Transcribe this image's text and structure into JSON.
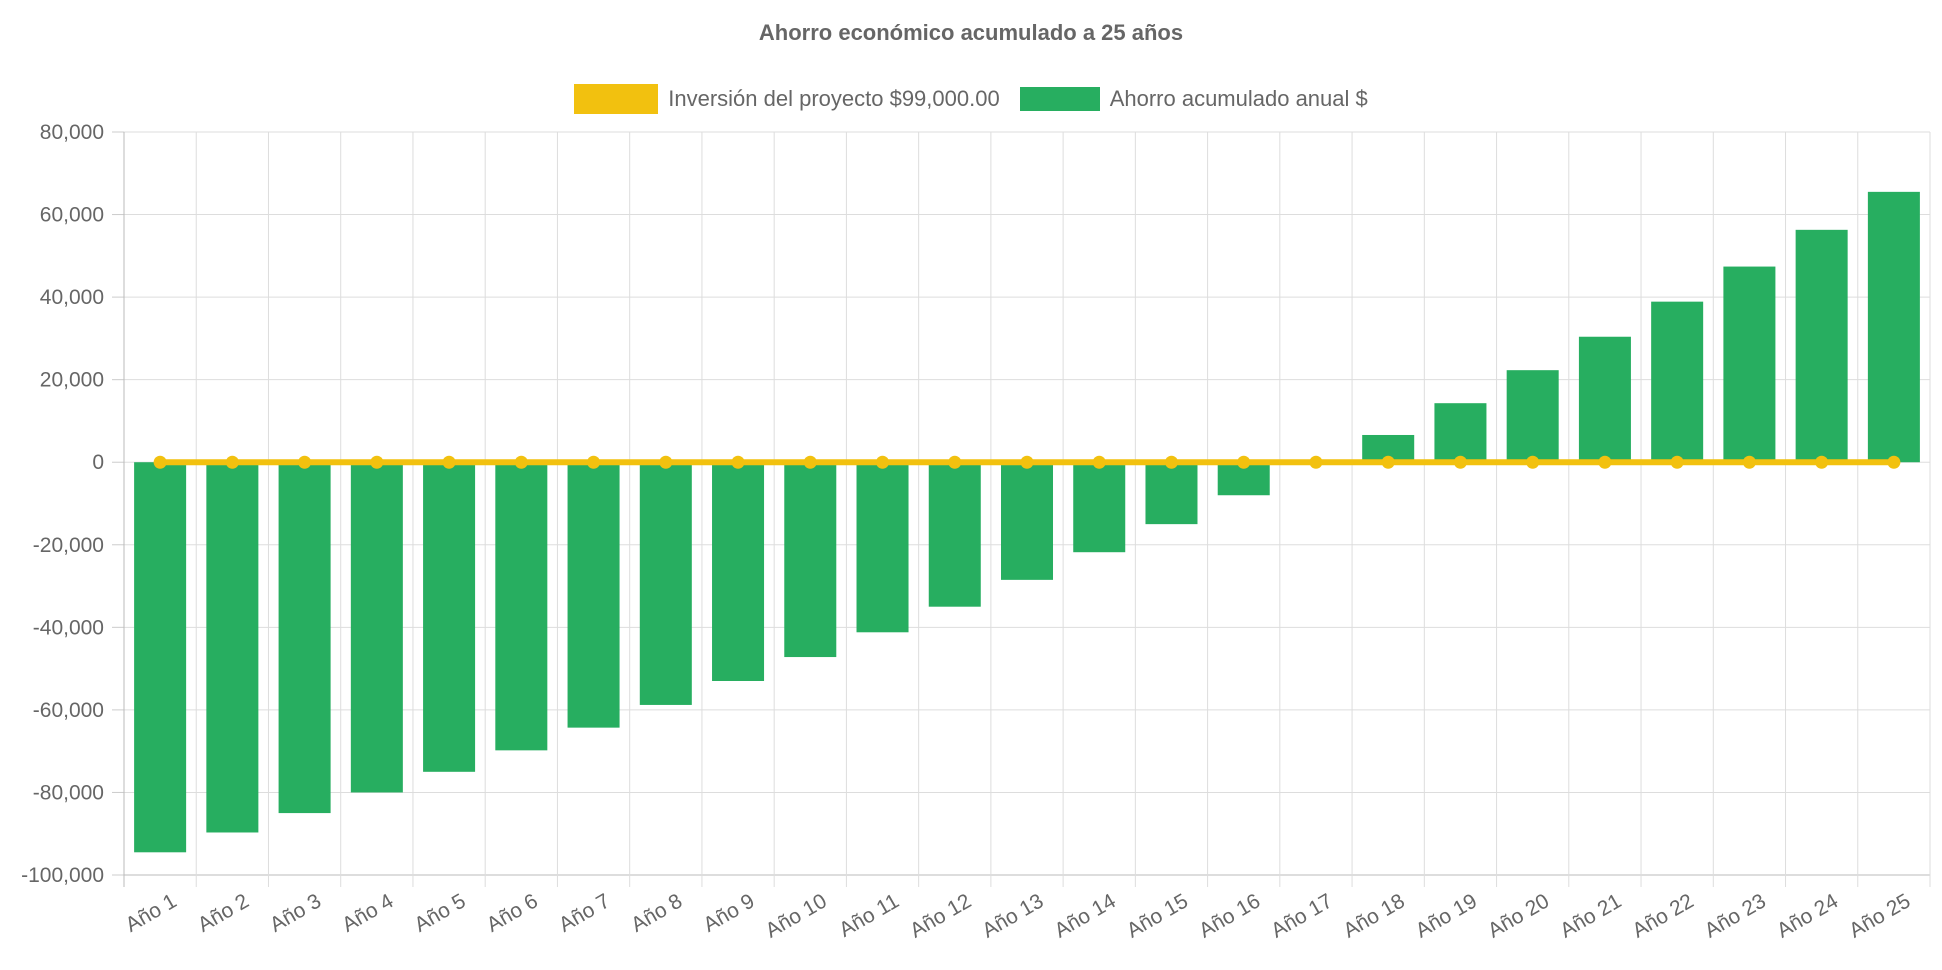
{
  "chart_data": {
    "type": "bar",
    "title": "Ahorro económico acumulado a 25 años",
    "categories": [
      "Año 1",
      "Año 2",
      "Año 3",
      "Año 4",
      "Año 5",
      "Año 6",
      "Año 7",
      "Año 8",
      "Año 9",
      "Año 10",
      "Año 11",
      "Año 12",
      "Año 13",
      "Año 14",
      "Año 15",
      "Año 16",
      "Año 17",
      "Año 18",
      "Año 19",
      "Año 20",
      "Año 21",
      "Año 22",
      "Año 23",
      "Año 24",
      "Año 25"
    ],
    "series": [
      {
        "name": "Inversión del proyecto $99,000.00",
        "type": "line",
        "color": "#f2c10f",
        "values": [
          0,
          0,
          0,
          0,
          0,
          0,
          0,
          0,
          0,
          0,
          0,
          0,
          0,
          0,
          0,
          0,
          0,
          0,
          0,
          0,
          0,
          0,
          0,
          0,
          0
        ]
      },
      {
        "name": "Ahorro acumulado anual $",
        "type": "bar",
        "color": "#27ae60",
        "values": [
          -94500,
          -89700,
          -85000,
          -80000,
          -75000,
          -69800,
          -64300,
          -58800,
          -53000,
          -47200,
          -41200,
          -35000,
          -28500,
          -21800,
          -15000,
          -8000,
          0,
          6600,
          14300,
          22300,
          30400,
          38900,
          47400,
          56300,
          65500
        ]
      }
    ],
    "y_ticks": [
      "80,000",
      "60,000",
      "40,000",
      "20,000",
      "0",
      "-20,000",
      "-40,000",
      "-60,000",
      "-80,000",
      "-100,000"
    ],
    "ylim": [
      -100000,
      80000
    ],
    "grid": true,
    "legend_position": "top"
  }
}
